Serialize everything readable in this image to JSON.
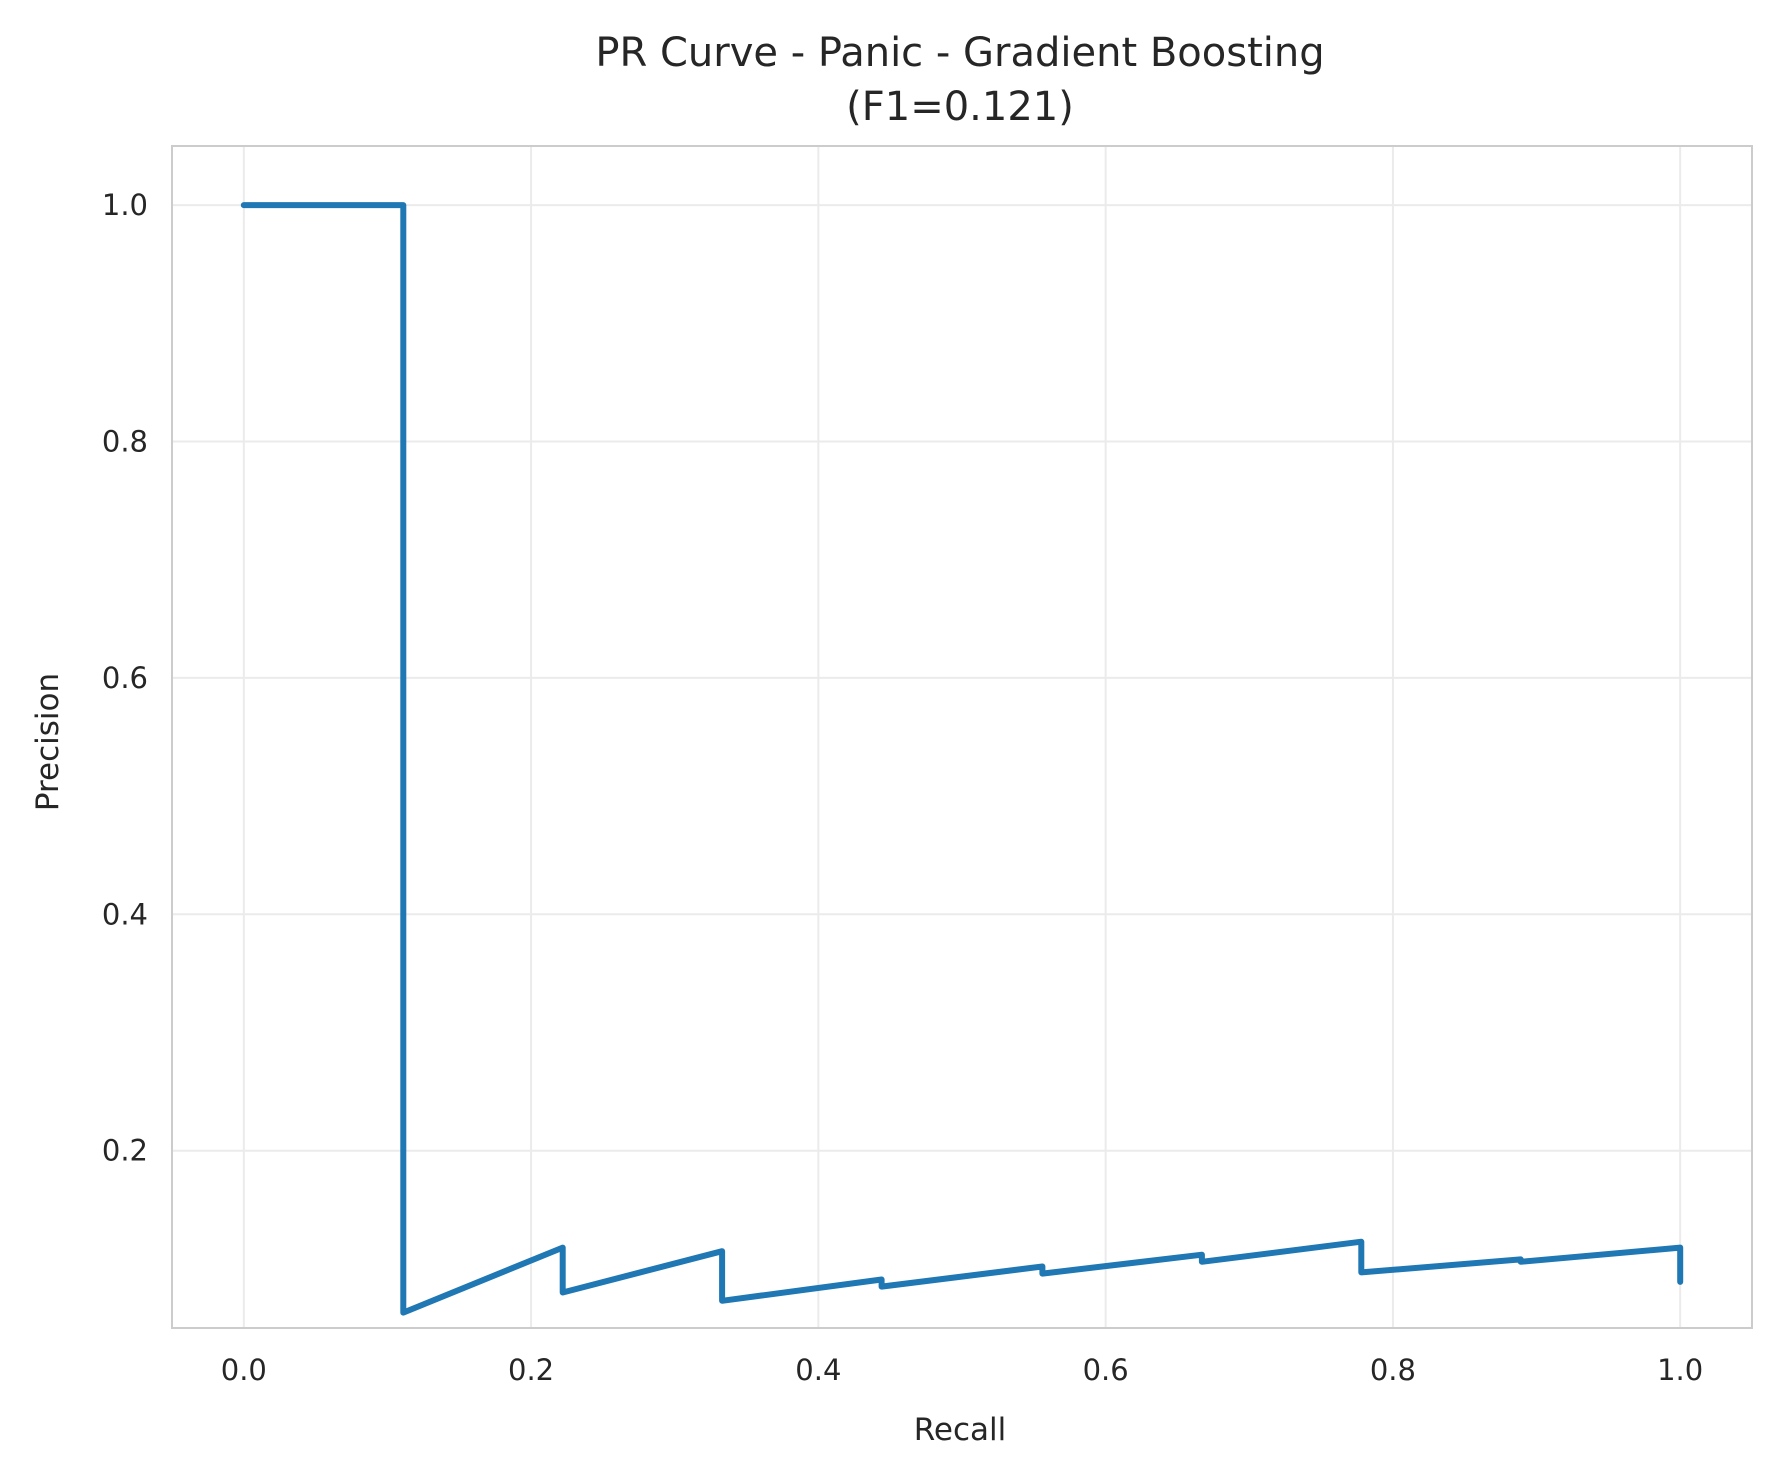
{
  "chart_data": {
    "type": "line",
    "title": "PR Curve - Panic - Gradient Boosting",
    "subtitle": "(F1=0.121)",
    "xlabel": "Recall",
    "ylabel": "Precision",
    "xlim": [
      -0.05,
      1.05
    ],
    "ylim": [
      0.05,
      1.05
    ],
    "xticks": [
      0.0,
      0.2,
      0.4,
      0.6,
      0.8,
      1.0
    ],
    "xtick_labels": [
      "0.0",
      "0.2",
      "0.4",
      "0.6",
      "0.8",
      "1.0"
    ],
    "yticks": [
      0.2,
      0.4,
      0.6,
      0.8,
      1.0
    ],
    "ytick_labels": [
      "0.2",
      "0.4",
      "0.6",
      "0.8",
      "1.0"
    ],
    "grid": true,
    "series": [
      {
        "color": "#1f77b4",
        "x": [
          0.0,
          0.111,
          0.111,
          0.222,
          0.222,
          0.333,
          0.333,
          0.444,
          0.444,
          0.556,
          0.556,
          0.667,
          0.667,
          0.778,
          0.778,
          0.889,
          0.889,
          1.0,
          1.0
        ],
        "y": [
          1.0,
          1.0,
          0.063,
          0.118,
          0.08,
          0.115,
          0.073,
          0.091,
          0.085,
          0.102,
          0.096,
          0.112,
          0.106,
          0.123,
          0.097,
          0.108,
          0.106,
          0.118,
          0.089
        ]
      }
    ]
  }
}
